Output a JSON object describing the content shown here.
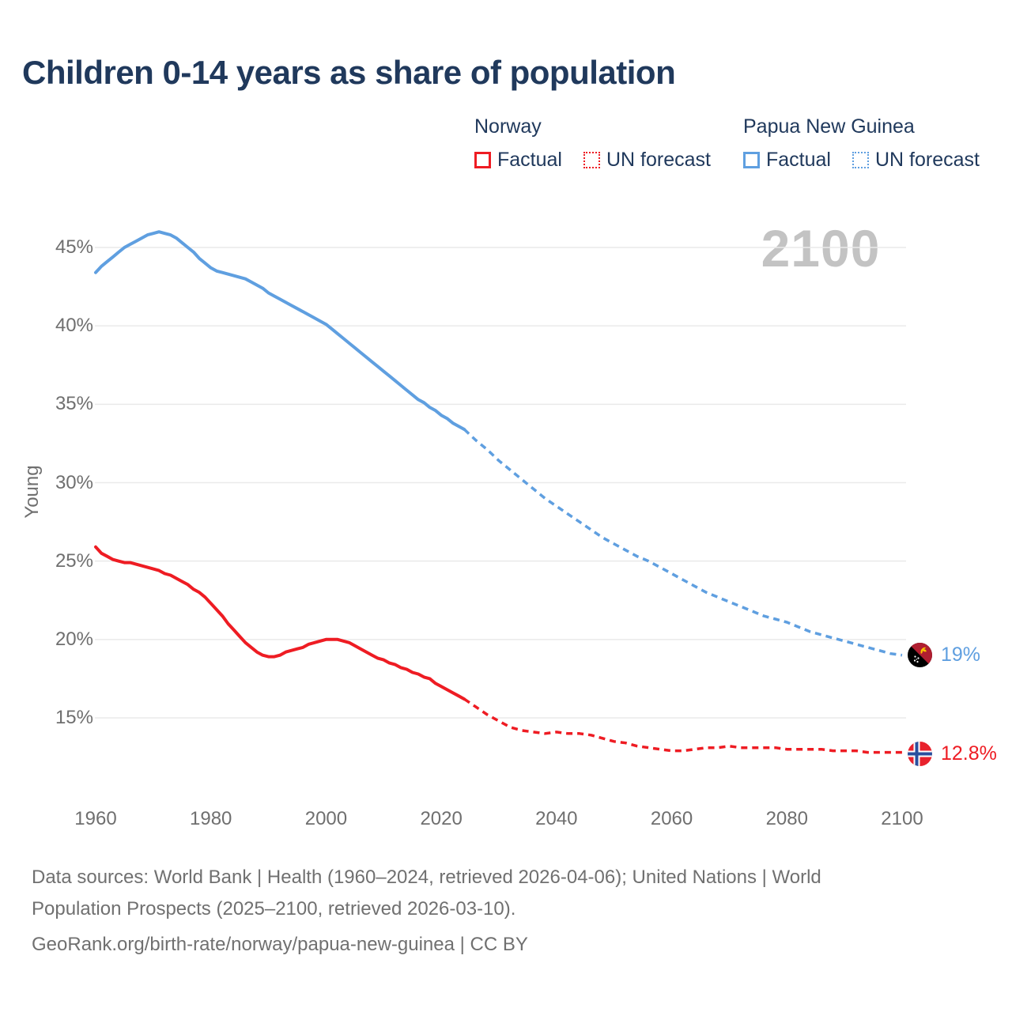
{
  "header": {
    "title": "Children 0-14 years as share of population"
  },
  "legend": {
    "groups": [
      {
        "label": "Norway",
        "color": "#ee1c23",
        "items": [
          {
            "label": "Factual",
            "style": "solid"
          },
          {
            "label": "UN forecast",
            "style": "dashed"
          }
        ]
      },
      {
        "label": "Papua New Guinea",
        "color": "#5f9fe0",
        "items": [
          {
            "label": "Factual",
            "style": "solid"
          },
          {
            "label": "UN forecast",
            "style": "dashed"
          }
        ]
      }
    ]
  },
  "chart_data": {
    "type": "line",
    "title": "Children 0-14 years as share of population",
    "xlabel": "",
    "ylabel": "Young",
    "watermark": "2100",
    "xlim": [
      1960,
      2100
    ],
    "ylim": [
      12,
      47
    ],
    "grid": true,
    "legend_position": "top-right",
    "y_ticks": [
      {
        "value": 45,
        "label": "45%"
      },
      {
        "value": 40,
        "label": "40%"
      },
      {
        "value": 35,
        "label": "35%"
      },
      {
        "value": 30,
        "label": "30%"
      },
      {
        "value": 25,
        "label": "25%"
      },
      {
        "value": 20,
        "label": "20%"
      },
      {
        "value": 15,
        "label": "15%"
      }
    ],
    "x_ticks": [
      {
        "value": 1960,
        "label": "1960"
      },
      {
        "value": 1980,
        "label": "1980"
      },
      {
        "value": 2000,
        "label": "2000"
      },
      {
        "value": 2020,
        "label": "2020"
      },
      {
        "value": 2040,
        "label": "2040"
      },
      {
        "value": 2060,
        "label": "2060"
      },
      {
        "value": 2080,
        "label": "2080"
      },
      {
        "value": 2100,
        "label": "2100"
      }
    ],
    "series": [
      {
        "name": "Papua New Guinea — Factual",
        "style": "solid",
        "color": "#5f9fe0",
        "points": [
          [
            1960,
            43.4
          ],
          [
            1961,
            43.8
          ],
          [
            1962,
            44.1
          ],
          [
            1963,
            44.4
          ],
          [
            1964,
            44.7
          ],
          [
            1965,
            45.0
          ],
          [
            1966,
            45.2
          ],
          [
            1967,
            45.4
          ],
          [
            1968,
            45.6
          ],
          [
            1969,
            45.8
          ],
          [
            1970,
            45.9
          ],
          [
            1971,
            46.0
          ],
          [
            1972,
            45.9
          ],
          [
            1973,
            45.8
          ],
          [
            1974,
            45.6
          ],
          [
            1975,
            45.3
          ],
          [
            1976,
            45.0
          ],
          [
            1977,
            44.7
          ],
          [
            1978,
            44.3
          ],
          [
            1979,
            44.0
          ],
          [
            1980,
            43.7
          ],
          [
            1981,
            43.5
          ],
          [
            1982,
            43.4
          ],
          [
            1983,
            43.3
          ],
          [
            1984,
            43.2
          ],
          [
            1985,
            43.1
          ],
          [
            1986,
            43.0
          ],
          [
            1987,
            42.8
          ],
          [
            1988,
            42.6
          ],
          [
            1989,
            42.4
          ],
          [
            1990,
            42.1
          ],
          [
            1991,
            41.9
          ],
          [
            1992,
            41.7
          ],
          [
            1993,
            41.5
          ],
          [
            1994,
            41.3
          ],
          [
            1995,
            41.1
          ],
          [
            1996,
            40.9
          ],
          [
            1997,
            40.7
          ],
          [
            1998,
            40.5
          ],
          [
            1999,
            40.3
          ],
          [
            2000,
            40.1
          ],
          [
            2001,
            39.8
          ],
          [
            2002,
            39.5
          ],
          [
            2003,
            39.2
          ],
          [
            2004,
            38.9
          ],
          [
            2005,
            38.6
          ],
          [
            2006,
            38.3
          ],
          [
            2007,
            38.0
          ],
          [
            2008,
            37.7
          ],
          [
            2009,
            37.4
          ],
          [
            2010,
            37.1
          ],
          [
            2011,
            36.8
          ],
          [
            2012,
            36.5
          ],
          [
            2013,
            36.2
          ],
          [
            2014,
            35.9
          ],
          [
            2015,
            35.6
          ],
          [
            2016,
            35.3
          ],
          [
            2017,
            35.1
          ],
          [
            2018,
            34.8
          ],
          [
            2019,
            34.6
          ],
          [
            2020,
            34.3
          ],
          [
            2021,
            34.1
          ],
          [
            2022,
            33.8
          ],
          [
            2023,
            33.6
          ],
          [
            2024,
            33.4
          ]
        ]
      },
      {
        "name": "Papua New Guinea — UN forecast",
        "style": "dashed",
        "color": "#5f9fe0",
        "points": [
          [
            2024,
            33.4
          ],
          [
            2026,
            32.7
          ],
          [
            2028,
            32.1
          ],
          [
            2030,
            31.4
          ],
          [
            2032,
            30.8
          ],
          [
            2034,
            30.2
          ],
          [
            2036,
            29.6
          ],
          [
            2038,
            29.0
          ],
          [
            2040,
            28.5
          ],
          [
            2042,
            28.0
          ],
          [
            2044,
            27.5
          ],
          [
            2046,
            27.0
          ],
          [
            2048,
            26.5
          ],
          [
            2050,
            26.1
          ],
          [
            2052,
            25.7
          ],
          [
            2054,
            25.3
          ],
          [
            2056,
            25.0
          ],
          [
            2058,
            24.6
          ],
          [
            2060,
            24.2
          ],
          [
            2062,
            23.8
          ],
          [
            2064,
            23.4
          ],
          [
            2066,
            23.0
          ],
          [
            2068,
            22.7
          ],
          [
            2070,
            22.4
          ],
          [
            2072,
            22.1
          ],
          [
            2074,
            21.8
          ],
          [
            2076,
            21.5
          ],
          [
            2078,
            21.3
          ],
          [
            2080,
            21.1
          ],
          [
            2082,
            20.8
          ],
          [
            2084,
            20.5
          ],
          [
            2086,
            20.3
          ],
          [
            2088,
            20.1
          ],
          [
            2090,
            19.9
          ],
          [
            2092,
            19.7
          ],
          [
            2094,
            19.5
          ],
          [
            2096,
            19.3
          ],
          [
            2098,
            19.1
          ],
          [
            2100,
            19.0
          ]
        ]
      },
      {
        "name": "Norway — Factual",
        "style": "solid",
        "color": "#ee1c23",
        "points": [
          [
            1960,
            25.9
          ],
          [
            1961,
            25.5
          ],
          [
            1962,
            25.3
          ],
          [
            1963,
            25.1
          ],
          [
            1964,
            25.0
          ],
          [
            1965,
            24.9
          ],
          [
            1966,
            24.9
          ],
          [
            1967,
            24.8
          ],
          [
            1968,
            24.7
          ],
          [
            1969,
            24.6
          ],
          [
            1970,
            24.5
          ],
          [
            1971,
            24.4
          ],
          [
            1972,
            24.2
          ],
          [
            1973,
            24.1
          ],
          [
            1974,
            23.9
          ],
          [
            1975,
            23.7
          ],
          [
            1976,
            23.5
          ],
          [
            1977,
            23.2
          ],
          [
            1978,
            23.0
          ],
          [
            1979,
            22.7
          ],
          [
            1980,
            22.3
          ],
          [
            1981,
            21.9
          ],
          [
            1982,
            21.5
          ],
          [
            1983,
            21.0
          ],
          [
            1984,
            20.6
          ],
          [
            1985,
            20.2
          ],
          [
            1986,
            19.8
          ],
          [
            1987,
            19.5
          ],
          [
            1988,
            19.2
          ],
          [
            1989,
            19.0
          ],
          [
            1990,
            18.9
          ],
          [
            1991,
            18.9
          ],
          [
            1992,
            19.0
          ],
          [
            1993,
            19.2
          ],
          [
            1994,
            19.3
          ],
          [
            1995,
            19.4
          ],
          [
            1996,
            19.5
          ],
          [
            1997,
            19.7
          ],
          [
            1998,
            19.8
          ],
          [
            1999,
            19.9
          ],
          [
            2000,
            20.0
          ],
          [
            2001,
            20.0
          ],
          [
            2002,
            20.0
          ],
          [
            2003,
            19.9
          ],
          [
            2004,
            19.8
          ],
          [
            2005,
            19.6
          ],
          [
            2006,
            19.4
          ],
          [
            2007,
            19.2
          ],
          [
            2008,
            19.0
          ],
          [
            2009,
            18.8
          ],
          [
            2010,
            18.7
          ],
          [
            2011,
            18.5
          ],
          [
            2012,
            18.4
          ],
          [
            2013,
            18.2
          ],
          [
            2014,
            18.1
          ],
          [
            2015,
            17.9
          ],
          [
            2016,
            17.8
          ],
          [
            2017,
            17.6
          ],
          [
            2018,
            17.5
          ],
          [
            2019,
            17.2
          ],
          [
            2020,
            17.0
          ],
          [
            2021,
            16.8
          ],
          [
            2022,
            16.6
          ],
          [
            2023,
            16.4
          ],
          [
            2024,
            16.2
          ]
        ]
      },
      {
        "name": "Norway — UN forecast",
        "style": "dashed",
        "color": "#ee1c23",
        "points": [
          [
            2024,
            16.2
          ],
          [
            2026,
            15.7
          ],
          [
            2028,
            15.2
          ],
          [
            2030,
            14.8
          ],
          [
            2032,
            14.4
          ],
          [
            2034,
            14.2
          ],
          [
            2036,
            14.1
          ],
          [
            2038,
            14.0
          ],
          [
            2040,
            14.1
          ],
          [
            2042,
            14.0
          ],
          [
            2044,
            14.0
          ],
          [
            2046,
            13.9
          ],
          [
            2048,
            13.7
          ],
          [
            2050,
            13.5
          ],
          [
            2052,
            13.4
          ],
          [
            2054,
            13.2
          ],
          [
            2056,
            13.1
          ],
          [
            2058,
            13.0
          ],
          [
            2060,
            12.9
          ],
          [
            2062,
            12.9
          ],
          [
            2064,
            13.0
          ],
          [
            2066,
            13.1
          ],
          [
            2068,
            13.1
          ],
          [
            2070,
            13.2
          ],
          [
            2072,
            13.1
          ],
          [
            2074,
            13.1
          ],
          [
            2076,
            13.1
          ],
          [
            2078,
            13.1
          ],
          [
            2080,
            13.0
          ],
          [
            2082,
            13.0
          ],
          [
            2084,
            13.0
          ],
          [
            2086,
            13.0
          ],
          [
            2088,
            12.9
          ],
          [
            2090,
            12.9
          ],
          [
            2092,
            12.9
          ],
          [
            2094,
            12.8
          ],
          [
            2096,
            12.8
          ],
          [
            2098,
            12.8
          ],
          [
            2100,
            12.8
          ]
        ]
      }
    ],
    "end_labels": [
      {
        "text": "19%",
        "color": "#5f9fe0",
        "flag": "papua-new-guinea",
        "value": 19.0
      },
      {
        "text": "12.8%",
        "color": "#ee1c23",
        "flag": "norway",
        "value": 12.8
      }
    ]
  },
  "footer": {
    "lines": [
      "Data sources: World Bank | Health (1960–2024, retrieved 2026-04-06); United Nations | World",
      "Population Prospects (2025–2100, retrieved 2026-03-10).",
      "GeoRank.org/birth-rate/norway/papua-new-guinea | CC BY"
    ]
  }
}
